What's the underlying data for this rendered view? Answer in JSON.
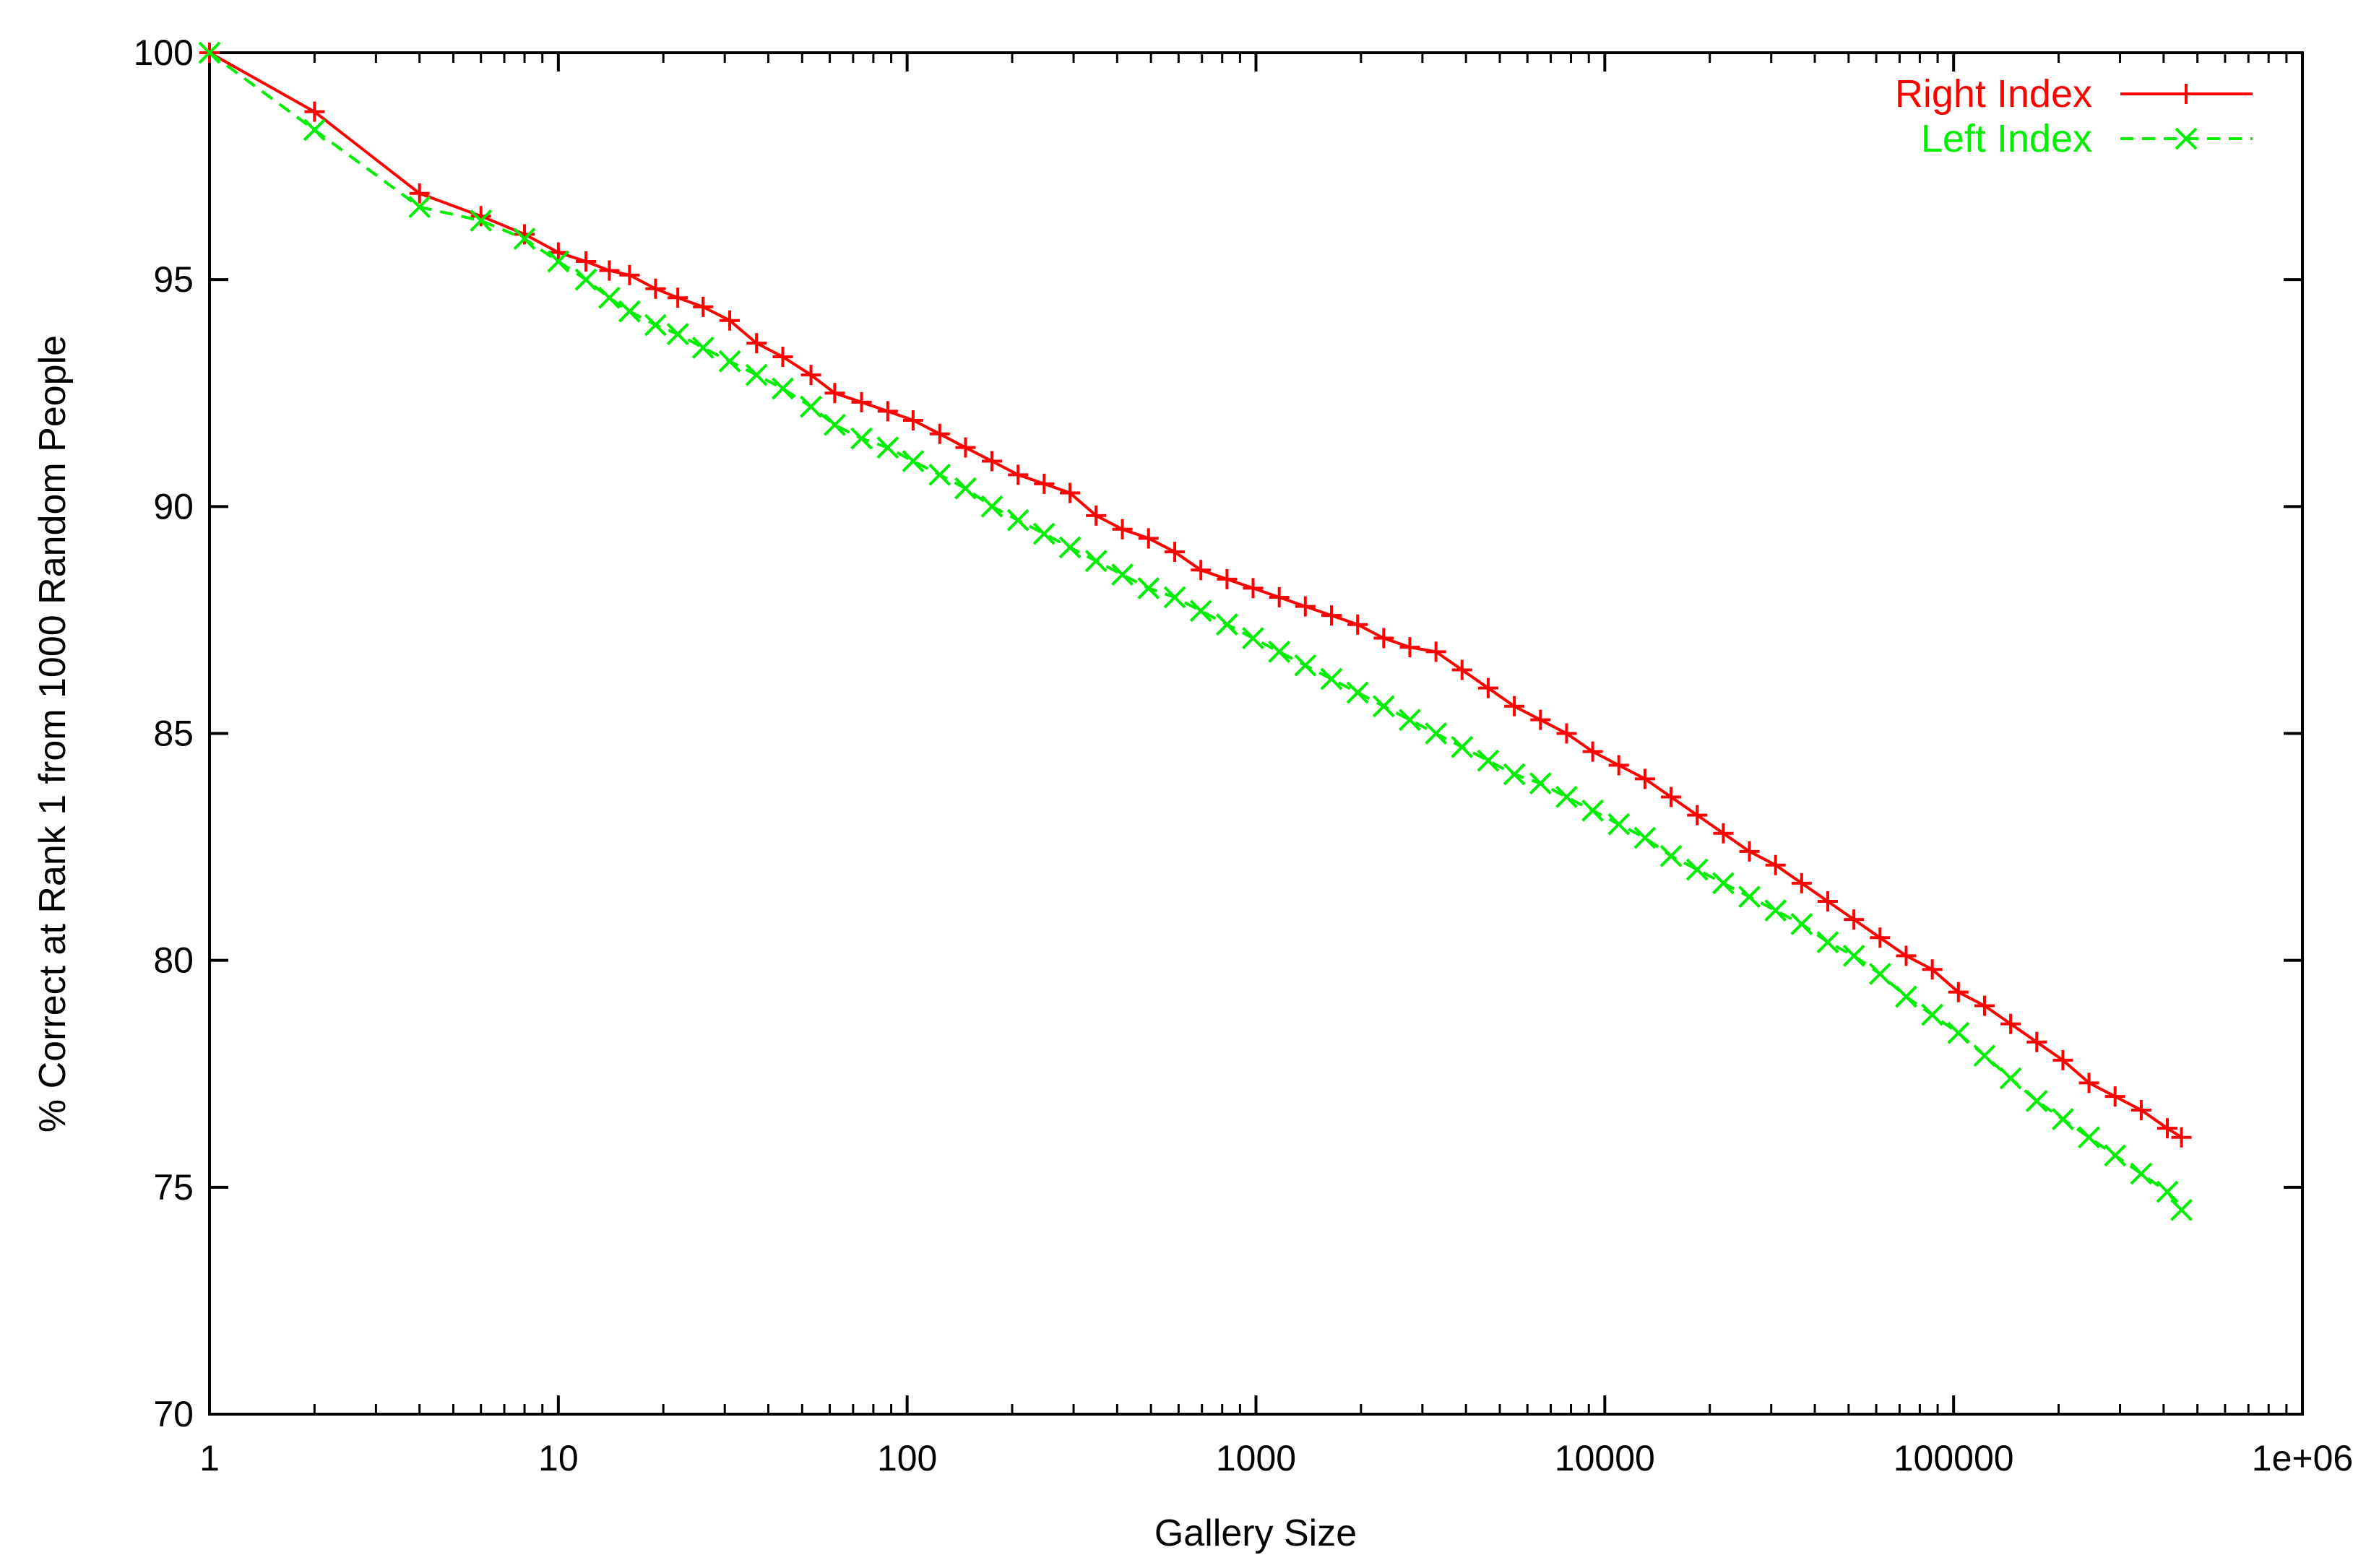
{
  "chart_data": {
    "type": "line",
    "title": "",
    "xlabel": "Gallery Size",
    "ylabel": "% Correct at Rank 1 from 1000 Random People",
    "xscale": "log",
    "xlim": [
      1,
      1000000
    ],
    "ylim": [
      70,
      100
    ],
    "x_ticks": [
      1,
      10,
      100,
      1000,
      10000,
      100000,
      1000000
    ],
    "x_tick_labels": [
      "1",
      "10",
      "100",
      "1000",
      "10000",
      "100000",
      "1e+06"
    ],
    "y_ticks": [
      70,
      75,
      80,
      85,
      90,
      95,
      100
    ],
    "y_tick_labels": [
      "70",
      "75",
      "80",
      "85",
      "90",
      "95",
      "100"
    ],
    "grid": false,
    "legend_position": "top-right",
    "series": [
      {
        "name": "Right Index",
        "color": "#ff0000",
        "line_style": "solid",
        "marker": "plus",
        "points": [
          [
            1,
            100.0
          ],
          [
            2,
            98.7
          ],
          [
            4,
            96.9
          ],
          [
            6,
            96.4
          ],
          [
            8,
            96.0
          ],
          [
            10,
            95.6
          ],
          [
            12,
            95.4
          ],
          [
            14,
            95.2
          ],
          [
            16,
            95.1
          ],
          [
            19,
            94.8
          ],
          [
            22,
            94.6
          ],
          [
            26,
            94.4
          ],
          [
            31,
            94.1
          ],
          [
            37,
            93.6
          ],
          [
            44,
            93.3
          ],
          [
            53,
            92.9
          ],
          [
            62,
            92.5
          ],
          [
            74,
            92.3
          ],
          [
            88,
            92.1
          ],
          [
            104,
            91.9
          ],
          [
            124,
            91.6
          ],
          [
            147,
            91.3
          ],
          [
            175,
            91.0
          ],
          [
            208,
            90.7
          ],
          [
            247,
            90.5
          ],
          [
            293,
            90.3
          ],
          [
            348,
            89.8
          ],
          [
            414,
            89.5
          ],
          [
            492,
            89.3
          ],
          [
            585,
            89.0
          ],
          [
            695,
            88.6
          ],
          [
            826,
            88.4
          ],
          [
            981,
            88.2
          ],
          [
            1166,
            88.0
          ],
          [
            1385,
            87.8
          ],
          [
            1646,
            87.6
          ],
          [
            1956,
            87.4
          ],
          [
            2324,
            87.1
          ],
          [
            2761,
            86.9
          ],
          [
            3281,
            86.8
          ],
          [
            3898,
            86.4
          ],
          [
            4632,
            86.0
          ],
          [
            5504,
            85.6
          ],
          [
            6540,
            85.3
          ],
          [
            7771,
            85.0
          ],
          [
            9233,
            84.6
          ],
          [
            10970,
            84.3
          ],
          [
            13035,
            84.0
          ],
          [
            15488,
            83.6
          ],
          [
            18403,
            83.2
          ],
          [
            21866,
            82.8
          ],
          [
            25981,
            82.4
          ],
          [
            30870,
            82.1
          ],
          [
            36680,
            81.7
          ],
          [
            43582,
            81.3
          ],
          [
            51784,
            80.9
          ],
          [
            61529,
            80.5
          ],
          [
            73108,
            80.1
          ],
          [
            86866,
            79.8
          ],
          [
            103213,
            79.3
          ],
          [
            122636,
            79.0
          ],
          [
            145714,
            78.6
          ],
          [
            173134,
            78.2
          ],
          [
            205716,
            77.8
          ],
          [
            244429,
            77.3
          ],
          [
            290426,
            77.0
          ],
          [
            345080,
            76.7
          ],
          [
            410020,
            76.3
          ],
          [
            450000,
            76.1
          ]
        ]
      },
      {
        "name": "Left Index",
        "color": "#00ee00",
        "line_style": "dashed",
        "marker": "cross",
        "points": [
          [
            1,
            100.0
          ],
          [
            2,
            98.3
          ],
          [
            4,
            96.6
          ],
          [
            6,
            96.3
          ],
          [
            8,
            95.9
          ],
          [
            10,
            95.4
          ],
          [
            12,
            95.0
          ],
          [
            14,
            94.6
          ],
          [
            16,
            94.3
          ],
          [
            19,
            94.0
          ],
          [
            22,
            93.8
          ],
          [
            26,
            93.5
          ],
          [
            31,
            93.2
          ],
          [
            37,
            92.9
          ],
          [
            44,
            92.6
          ],
          [
            53,
            92.2
          ],
          [
            62,
            91.8
          ],
          [
            74,
            91.5
          ],
          [
            88,
            91.3
          ],
          [
            104,
            91.0
          ],
          [
            124,
            90.7
          ],
          [
            147,
            90.4
          ],
          [
            175,
            90.0
          ],
          [
            208,
            89.7
          ],
          [
            247,
            89.4
          ],
          [
            293,
            89.1
          ],
          [
            348,
            88.8
          ],
          [
            414,
            88.5
          ],
          [
            492,
            88.2
          ],
          [
            585,
            88.0
          ],
          [
            695,
            87.7
          ],
          [
            826,
            87.4
          ],
          [
            981,
            87.1
          ],
          [
            1166,
            86.8
          ],
          [
            1385,
            86.5
          ],
          [
            1646,
            86.2
          ],
          [
            1956,
            85.9
          ],
          [
            2324,
            85.6
          ],
          [
            2761,
            85.3
          ],
          [
            3281,
            85.0
          ],
          [
            3898,
            84.7
          ],
          [
            4632,
            84.4
          ],
          [
            5504,
            84.1
          ],
          [
            6540,
            83.9
          ],
          [
            7771,
            83.6
          ],
          [
            9233,
            83.3
          ],
          [
            10970,
            83.0
          ],
          [
            13035,
            82.7
          ],
          [
            15488,
            82.3
          ],
          [
            18403,
            82.0
          ],
          [
            21866,
            81.7
          ],
          [
            25981,
            81.4
          ],
          [
            30870,
            81.1
          ],
          [
            36680,
            80.8
          ],
          [
            43582,
            80.4
          ],
          [
            51784,
            80.1
          ],
          [
            61529,
            79.7
          ],
          [
            73108,
            79.2
          ],
          [
            86866,
            78.8
          ],
          [
            103213,
            78.4
          ],
          [
            122636,
            77.9
          ],
          [
            145714,
            77.4
          ],
          [
            173134,
            76.9
          ],
          [
            205716,
            76.5
          ],
          [
            244429,
            76.1
          ],
          [
            290426,
            75.7
          ],
          [
            345080,
            75.3
          ],
          [
            410020,
            74.9
          ],
          [
            450000,
            74.5
          ]
        ]
      }
    ]
  }
}
